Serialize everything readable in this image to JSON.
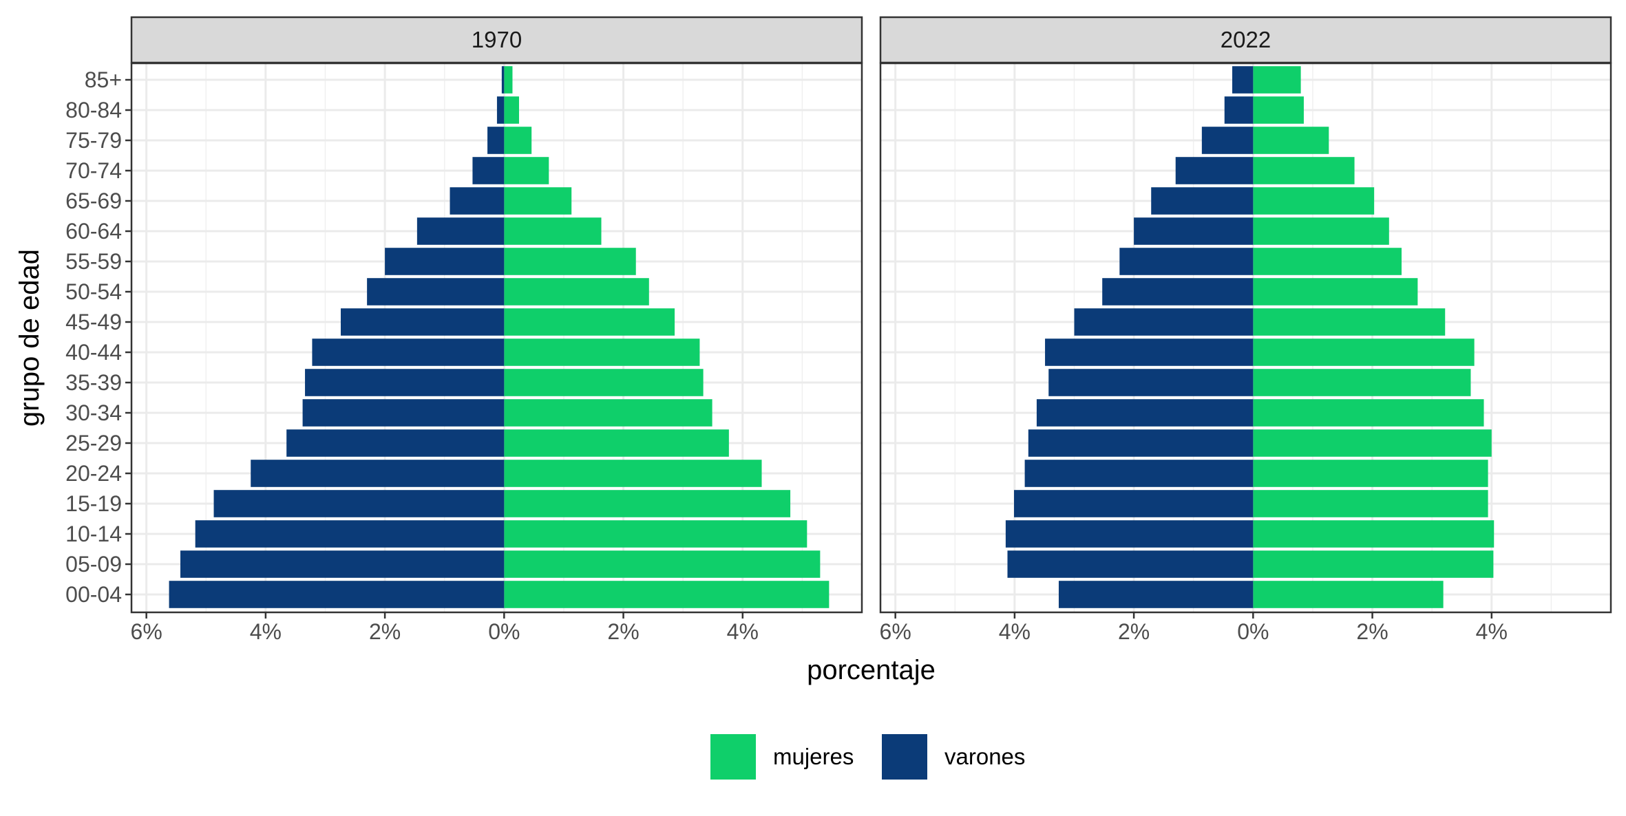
{
  "chart_data": {
    "type": "bar",
    "orientation": "horizontal",
    "xlabel": "porcentaje",
    "ylabel": "grupo de edad",
    "xlim": [
      -6,
      6
    ],
    "x_ticks": [
      -6,
      -4,
      -2,
      0,
      2,
      4
    ],
    "x_tick_labels": [
      "6%",
      "4%",
      "2%",
      "0%",
      "2%",
      "4%"
    ],
    "categories": [
      "00-04",
      "05-09",
      "10-14",
      "15-19",
      "20-24",
      "25-29",
      "30-34",
      "35-39",
      "40-44",
      "45-49",
      "50-54",
      "55-59",
      "60-64",
      "65-69",
      "70-74",
      "75-79",
      "80-84",
      "85+"
    ],
    "grid": true,
    "legend_position": "bottom",
    "colors": {
      "mujeres": "#0FCF6A",
      "varones": "#0B3B78"
    },
    "legend": [
      {
        "name": "mujeres",
        "color": "#0FCF6A"
      },
      {
        "name": "varones",
        "color": "#0B3B78"
      }
    ],
    "panels": [
      {
        "title": "1970",
        "series": [
          {
            "name": "mujeres",
            "values": [
              5.45,
              5.3,
              5.08,
              4.8,
              4.32,
              3.77,
              3.49,
              3.34,
              3.28,
              2.86,
              2.43,
              2.21,
              1.63,
              1.13,
              0.75,
              0.46,
              0.25,
              0.14
            ]
          },
          {
            "name": "varones",
            "values": [
              5.62,
              5.43,
              5.18,
              4.87,
              4.25,
              3.65,
              3.38,
              3.34,
              3.22,
              2.74,
              2.3,
              2.0,
              1.46,
              0.91,
              0.53,
              0.28,
              0.12,
              0.04
            ]
          }
        ]
      },
      {
        "title": "2022",
        "series": [
          {
            "name": "mujeres",
            "values": [
              3.19,
              4.03,
              4.04,
              3.94,
              3.94,
              4.0,
              3.87,
              3.65,
              3.71,
              3.22,
              2.76,
              2.49,
              2.28,
              2.03,
              1.7,
              1.27,
              0.85,
              0.8
            ]
          },
          {
            "name": "varones",
            "values": [
              3.26,
              4.12,
              4.15,
              4.01,
              3.83,
              3.77,
              3.63,
              3.43,
              3.49,
              3.0,
              2.53,
              2.24,
              2.0,
              1.71,
              1.3,
              0.86,
              0.48,
              0.35
            ]
          }
        ]
      }
    ]
  }
}
